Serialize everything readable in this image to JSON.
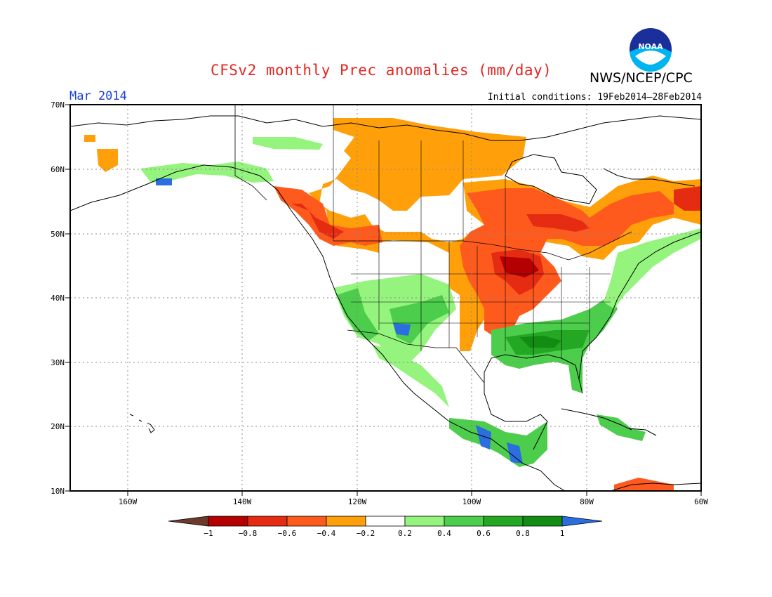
{
  "header": {
    "title": "CFSv2 monthly Prec anomalies (mm/day)",
    "agency": "NWS/NCEP/CPC",
    "logo_text": "NOAA",
    "month": "Mar 2014",
    "initial_conditions": "Initial conditions: 19Feb2014–28Feb2014"
  },
  "map": {
    "lat_labels": [
      "70N",
      "60N",
      "50N",
      "40N",
      "30N",
      "20N",
      "10N"
    ],
    "lon_labels": [
      "160W",
      "140W",
      "120W",
      "100W",
      "80W",
      "60W"
    ],
    "lat_range": [
      10,
      70
    ],
    "lon_range": [
      -170,
      -60
    ]
  },
  "legend": {
    "labels": [
      "−1",
      "−0.8",
      "−0.6",
      "−0.4",
      "−0.2",
      "0.2",
      "0.4",
      "0.6",
      "0.8",
      "1"
    ],
    "colors": [
      "#6b3a2a",
      "#b40000",
      "#e52b12",
      "#ff5a1e",
      "#ffa00a",
      "#ffffff",
      "#94f47e",
      "#4ccd4c",
      "#24a824",
      "#138c13",
      "#2a6ee0"
    ]
  },
  "colors": {
    "frame": "#000000",
    "grid": "#888888",
    "coast": "#000000"
  }
}
